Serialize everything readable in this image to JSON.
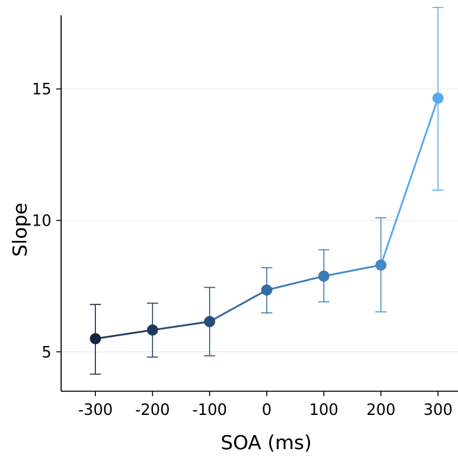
{
  "chart_data": {
    "type": "line",
    "title": "",
    "xlabel": "SOA (ms)",
    "ylabel": "Slope",
    "x": [
      -300,
      -200,
      -100,
      0,
      100,
      200,
      300
    ],
    "x_tick_labels": [
      "-300",
      "-200",
      "-100",
      "0",
      "100",
      "200",
      "300"
    ],
    "y_ticks": [
      5,
      10,
      15
    ],
    "y_tick_labels": [
      "5",
      "10",
      "15"
    ],
    "xlim": [
      -360,
      335
    ],
    "ylim": [
      3.5,
      17.8
    ],
    "grid": "horizontal",
    "legend": "none",
    "series": [
      {
        "values": [
          5.5,
          5.83,
          6.15,
          7.35,
          7.88,
          8.3,
          14.65
        ],
        "err_low": [
          4.15,
          4.8,
          4.85,
          6.48,
          6.9,
          6.52,
          11.15
        ],
        "err_high": [
          6.8,
          6.85,
          7.45,
          8.2,
          8.88,
          10.1,
          18.1
        ],
        "colors": [
          "#14253e",
          "#1d3a5c",
          "#264e79",
          "#346da1",
          "#3a7bb4",
          "#428bc6",
          "#56a9ee"
        ]
      }
    ]
  }
}
